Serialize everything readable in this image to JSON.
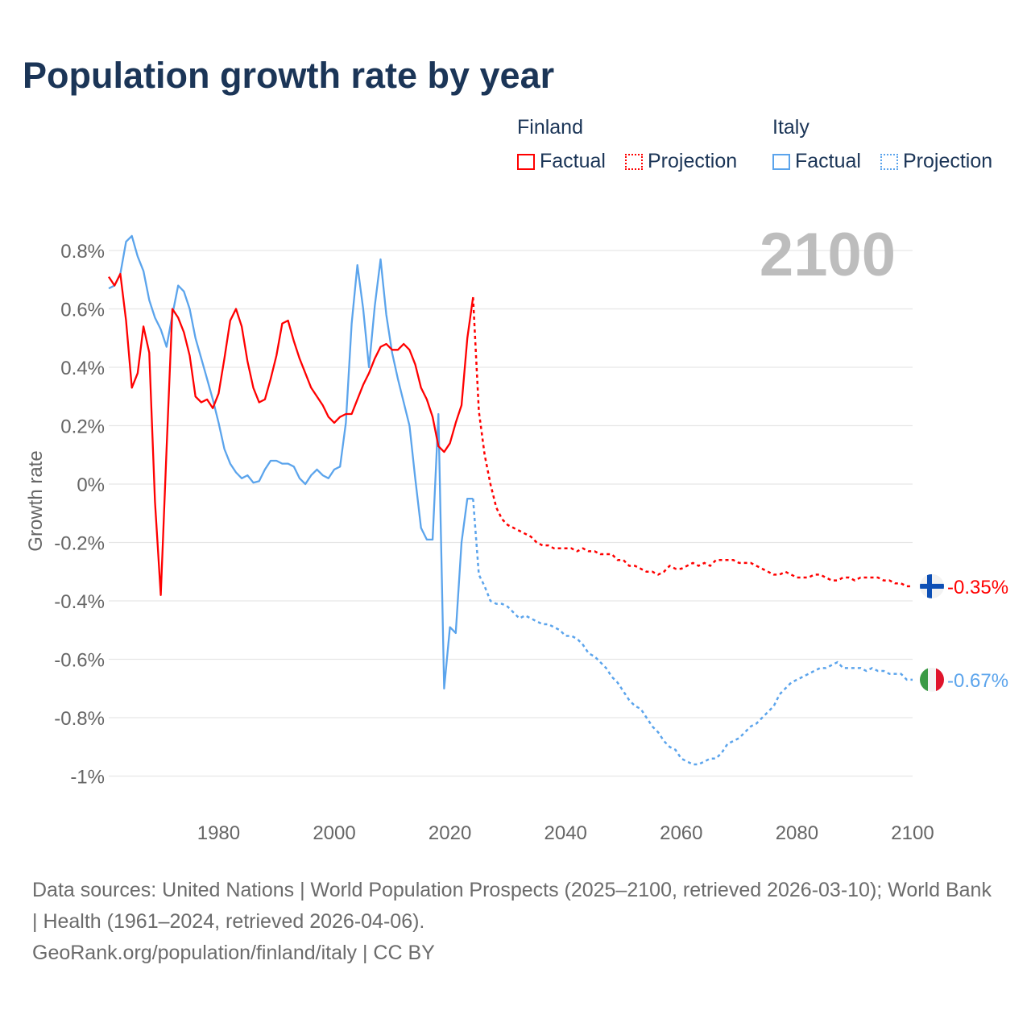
{
  "title": "Population growth rate by year",
  "legend": {
    "groups": [
      {
        "country": "Finland",
        "factual": "Factual",
        "projection": "Projection",
        "color": "#ff0000"
      },
      {
        "country": "Italy",
        "factual": "Factual",
        "projection": "Projection",
        "color": "#5ba4ec"
      }
    ]
  },
  "current_year_label": "2100",
  "footer": {
    "line1": "Data sources: United Nations | World Population Prospects (2025–2100, retrieved 2026-03-10); World Bank | Health (1961–2024, retrieved 2026-04-06).",
    "line2": "GeoRank.org/population/finland/italy | CC BY"
  },
  "chart_data": {
    "type": "line",
    "title": "Population growth rate by year",
    "xlabel": "",
    "ylabel": "Growth rate",
    "xlim": [
      1961,
      2100
    ],
    "ylim": [
      -1.1,
      0.9
    ],
    "x_ticks": [
      1980,
      2000,
      2020,
      2040,
      2060,
      2080,
      2100
    ],
    "y_ticks": [
      0.8,
      0.6,
      0.4,
      0.2,
      0,
      -0.2,
      -0.4,
      -0.6,
      -0.8,
      -1
    ],
    "y_tick_labels": [
      "0.8%",
      "0.6%",
      "0.4%",
      "0.2%",
      "0%",
      "-0.2%",
      "-0.4%",
      "-0.6%",
      "-0.8%",
      "-1%"
    ],
    "grid": true,
    "legend_position": "top-right",
    "series": [
      {
        "name": "Finland",
        "color": "#ff0000",
        "end_label": "-0.35%",
        "factual_start": 1961,
        "factual": [
          0.71,
          0.68,
          0.72,
          0.56,
          0.33,
          0.38,
          0.54,
          0.45,
          -0.06,
          -0.38,
          0.12,
          0.6,
          0.57,
          0.52,
          0.44,
          0.3,
          0.28,
          0.29,
          0.26,
          0.31,
          0.43,
          0.56,
          0.6,
          0.54,
          0.42,
          0.33,
          0.28,
          0.29,
          0.36,
          0.44,
          0.55,
          0.56,
          0.49,
          0.43,
          0.38,
          0.33,
          0.3,
          0.27,
          0.23,
          0.21,
          0.23,
          0.24,
          0.24,
          0.29,
          0.34,
          0.38,
          0.43,
          0.47,
          0.48,
          0.46,
          0.46,
          0.48,
          0.46,
          0.41,
          0.33,
          0.29,
          0.23,
          0.13,
          0.11,
          0.14,
          0.21,
          0.27,
          0.5,
          0.64
        ],
        "projection_start": 2025,
        "projection": [
          0.25,
          0.1,
          0.0,
          -0.08,
          -0.12,
          -0.14,
          -0.15,
          -0.16,
          -0.17,
          -0.18,
          -0.2,
          -0.21,
          -0.21,
          -0.22,
          -0.22,
          -0.22,
          -0.22,
          -0.23,
          -0.22,
          -0.23,
          -0.23,
          -0.24,
          -0.24,
          -0.24,
          -0.26,
          -0.26,
          -0.28,
          -0.28,
          -0.29,
          -0.3,
          -0.3,
          -0.31,
          -0.3,
          -0.28,
          -0.29,
          -0.29,
          -0.28,
          -0.27,
          -0.28,
          -0.27,
          -0.28,
          -0.26,
          -0.26,
          -0.26,
          -0.26,
          -0.27,
          -0.27,
          -0.27,
          -0.28,
          -0.29,
          -0.3,
          -0.31,
          -0.31,
          -0.3,
          -0.31,
          -0.32,
          -0.32,
          -0.32,
          -0.31,
          -0.31,
          -0.32,
          -0.33,
          -0.33,
          -0.32,
          -0.32,
          -0.33,
          -0.32,
          -0.32,
          -0.32,
          -0.32,
          -0.33,
          -0.33,
          -0.34,
          -0.34,
          -0.35,
          -0.35
        ]
      },
      {
        "name": "Italy",
        "color": "#5ba4ec",
        "end_label": "-0.67%",
        "factual_start": 1961,
        "factual": [
          0.67,
          0.68,
          0.72,
          0.83,
          0.85,
          0.78,
          0.73,
          0.63,
          0.57,
          0.53,
          0.47,
          0.58,
          0.68,
          0.66,
          0.6,
          0.5,
          0.43,
          0.36,
          0.29,
          0.21,
          0.12,
          0.07,
          0.04,
          0.02,
          0.03,
          0.005,
          0.01,
          0.05,
          0.08,
          0.08,
          0.07,
          0.07,
          0.06,
          0.02,
          0.0,
          0.03,
          0.05,
          0.03,
          0.02,
          0.05,
          0.06,
          0.21,
          0.55,
          0.75,
          0.6,
          0.4,
          0.61,
          0.77,
          0.58,
          0.45,
          0.36,
          0.28,
          0.2,
          0.02,
          -0.15,
          -0.19,
          -0.19,
          0.24,
          -0.7,
          -0.49,
          -0.51,
          -0.2,
          -0.05,
          -0.05
        ],
        "projection_start": 2025,
        "projection": [
          -0.31,
          -0.35,
          -0.4,
          -0.41,
          -0.41,
          -0.42,
          -0.44,
          -0.46,
          -0.45,
          -0.46,
          -0.47,
          -0.48,
          -0.48,
          -0.49,
          -0.5,
          -0.52,
          -0.52,
          -0.53,
          -0.55,
          -0.58,
          -0.59,
          -0.61,
          -0.63,
          -0.66,
          -0.68,
          -0.71,
          -0.74,
          -0.76,
          -0.77,
          -0.8,
          -0.83,
          -0.85,
          -0.88,
          -0.9,
          -0.91,
          -0.94,
          -0.95,
          -0.96,
          -0.96,
          -0.95,
          -0.94,
          -0.94,
          -0.92,
          -0.89,
          -0.88,
          -0.87,
          -0.85,
          -0.83,
          -0.82,
          -0.8,
          -0.78,
          -0.76,
          -0.72,
          -0.7,
          -0.68,
          -0.67,
          -0.66,
          -0.65,
          -0.64,
          -0.63,
          -0.63,
          -0.62,
          -0.61,
          -0.63,
          -0.63,
          -0.63,
          -0.63,
          -0.64,
          -0.63,
          -0.64,
          -0.64,
          -0.65,
          -0.65,
          -0.65,
          -0.67,
          -0.67
        ]
      }
    ]
  }
}
